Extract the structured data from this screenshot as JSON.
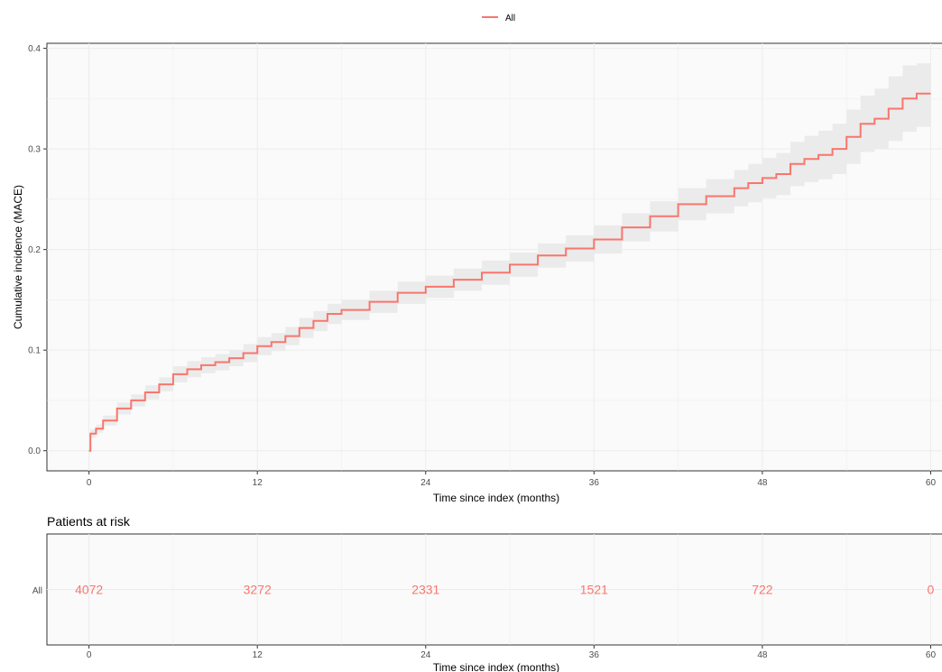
{
  "colors": {
    "series": "#f8766d",
    "band": "#ebebeb",
    "panel": "#fafafa",
    "grid": "#ececec"
  },
  "legend": {
    "label": "All",
    "position": "top"
  },
  "chart_data": [
    {
      "type": "line",
      "xlabel": "Time since index (months)",
      "ylabel": "Cumulative incidence (MACE)",
      "xlim": [
        -3,
        61
      ],
      "ylim": [
        -0.02,
        0.405
      ],
      "xticks": [
        "0",
        "12",
        "24",
        "36",
        "48",
        "60"
      ],
      "yticks": [
        "0.0",
        "0.1",
        "0.2",
        "0.3",
        "0.4"
      ],
      "grid": true,
      "series": [
        {
          "name": "All",
          "x": [
            0,
            0.1,
            0.5,
            1,
            2,
            3,
            4,
            5,
            6,
            7,
            8,
            9,
            10,
            11,
            12,
            13,
            14,
            15,
            16,
            17,
            18,
            20,
            22,
            24,
            26,
            28,
            30,
            32,
            34,
            36,
            38,
            40,
            42,
            44,
            46,
            47,
            48,
            49,
            50,
            51,
            52,
            53,
            54,
            55,
            56,
            57,
            58,
            59,
            60
          ],
          "y": [
            0,
            0.017,
            0.022,
            0.03,
            0.042,
            0.05,
            0.058,
            0.066,
            0.076,
            0.081,
            0.085,
            0.088,
            0.092,
            0.097,
            0.104,
            0.108,
            0.114,
            0.122,
            0.129,
            0.136,
            0.14,
            0.148,
            0.157,
            0.163,
            0.17,
            0.177,
            0.185,
            0.194,
            0.201,
            0.21,
            0.222,
            0.233,
            0.245,
            0.253,
            0.261,
            0.266,
            0.271,
            0.275,
            0.285,
            0.29,
            0.294,
            0.3,
            0.312,
            0.325,
            0.33,
            0.34,
            0.35,
            0.355,
            0.355
          ],
          "lower": [
            0,
            0.013,
            0.018,
            0.025,
            0.036,
            0.044,
            0.051,
            0.059,
            0.068,
            0.073,
            0.077,
            0.08,
            0.084,
            0.088,
            0.095,
            0.099,
            0.105,
            0.112,
            0.119,
            0.126,
            0.13,
            0.137,
            0.146,
            0.152,
            0.159,
            0.165,
            0.173,
            0.182,
            0.188,
            0.196,
            0.208,
            0.218,
            0.229,
            0.236,
            0.243,
            0.247,
            0.251,
            0.254,
            0.263,
            0.267,
            0.27,
            0.275,
            0.285,
            0.297,
            0.3,
            0.308,
            0.317,
            0.322,
            0.324
          ],
          "upper": [
            0,
            0.021,
            0.026,
            0.035,
            0.048,
            0.056,
            0.065,
            0.073,
            0.084,
            0.089,
            0.093,
            0.096,
            0.1,
            0.106,
            0.113,
            0.117,
            0.123,
            0.132,
            0.139,
            0.146,
            0.15,
            0.159,
            0.168,
            0.174,
            0.181,
            0.189,
            0.197,
            0.206,
            0.214,
            0.224,
            0.236,
            0.248,
            0.261,
            0.27,
            0.279,
            0.285,
            0.291,
            0.296,
            0.307,
            0.313,
            0.318,
            0.325,
            0.339,
            0.353,
            0.36,
            0.372,
            0.383,
            0.385,
            0.385
          ]
        }
      ]
    },
    {
      "type": "table",
      "title": "Patients at risk",
      "xlabel": "Time since index (months)",
      "row_label": "All",
      "x": [
        0,
        12,
        24,
        36,
        48,
        60
      ],
      "xticks": [
        "0",
        "12",
        "24",
        "36",
        "48",
        "60"
      ],
      "values": [
        "4072",
        "3272",
        "2331",
        "1521",
        "722",
        "0"
      ]
    }
  ]
}
